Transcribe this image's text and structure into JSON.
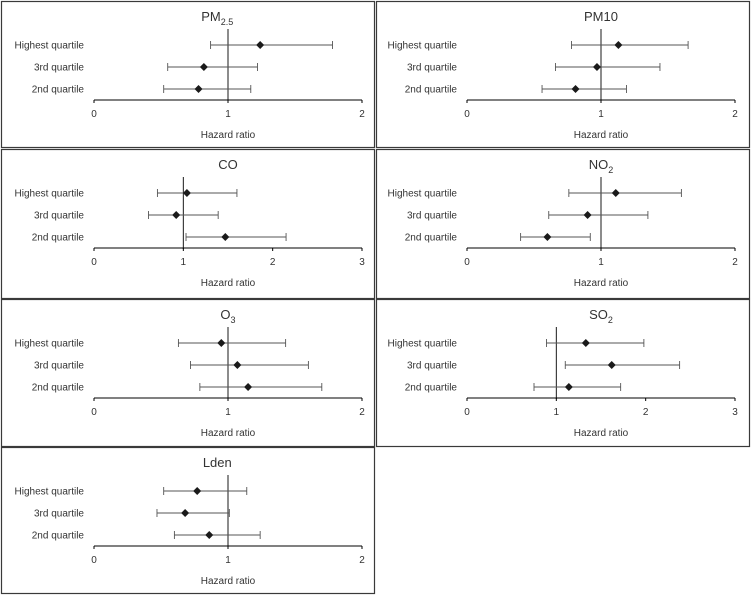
{
  "chart_data": [
    {
      "type": "forest",
      "title": "PM",
      "title_sub": "2.5",
      "categories": [
        "Highest quartile",
        "3rd quartile",
        "2nd quartile"
      ],
      "series": [
        {
          "name": "Hazard ratio",
          "estimate": [
            1.24,
            0.82,
            0.78
          ],
          "lower": [
            0.87,
            0.55,
            0.52
          ],
          "upper": [
            1.78,
            1.22,
            1.17
          ]
        }
      ],
      "ref_line": 1,
      "xlim": [
        0,
        2
      ],
      "xticks": [
        "0",
        "1",
        "2"
      ],
      "xlabel": "Hazard ratio",
      "axis_color": "#000000",
      "marker_color": "#1a1a1a"
    },
    {
      "type": "forest",
      "title": "PM10",
      "title_sub": "",
      "categories": [
        "Highest quartile",
        "3rd quartile",
        "2nd quartile"
      ],
      "series": [
        {
          "name": "Hazard ratio",
          "estimate": [
            1.13,
            0.97,
            0.81
          ],
          "lower": [
            0.78,
            0.66,
            0.56
          ],
          "upper": [
            1.65,
            1.44,
            1.19
          ]
        }
      ],
      "ref_line": 1,
      "xlim": [
        0,
        2
      ],
      "xticks": [
        "0",
        "1",
        "2"
      ],
      "xlabel": "Hazard ratio",
      "axis_color": "#000000",
      "marker_color": "#1a1a1a"
    },
    {
      "type": "forest",
      "title": "CO",
      "title_sub": "",
      "categories": [
        "Highest quartile",
        "3rd quartile",
        "2nd quartile"
      ],
      "series": [
        {
          "name": "Hazard ratio",
          "estimate": [
            1.04,
            0.92,
            1.47
          ],
          "lower": [
            0.71,
            0.61,
            1.03
          ],
          "upper": [
            1.6,
            1.39,
            2.15
          ]
        }
      ],
      "ref_line": 1,
      "xlim": [
        0,
        3
      ],
      "xticks": [
        "0",
        "1",
        "2",
        "3"
      ],
      "xlabel": "Hazard ratio",
      "axis_color": "#000000",
      "marker_color": "#1a1a1a"
    },
    {
      "type": "forest",
      "title": "NO",
      "title_sub": "2",
      "categories": [
        "Highest quartile",
        "3rd quartile",
        "2nd quartile"
      ],
      "series": [
        {
          "name": "Hazard ratio",
          "estimate": [
            1.11,
            0.9,
            0.6
          ],
          "lower": [
            0.76,
            0.61,
            0.4
          ],
          "upper": [
            1.6,
            1.35,
            0.92
          ]
        }
      ],
      "ref_line": 1,
      "xlim": [
        0,
        2
      ],
      "xticks": [
        "0",
        "1",
        "2"
      ],
      "xlabel": "Hazard ratio",
      "axis_color": "#000000",
      "marker_color": "#1a1a1a"
    },
    {
      "type": "forest",
      "title": "O",
      "title_sub": "3",
      "categories": [
        "Highest quartile",
        "3rd quartile",
        "2nd quartile"
      ],
      "series": [
        {
          "name": "Hazard ratio",
          "estimate": [
            0.95,
            1.07,
            1.15
          ],
          "lower": [
            0.63,
            0.72,
            0.79
          ],
          "upper": [
            1.43,
            1.6,
            1.7
          ]
        }
      ],
      "ref_line": 1,
      "xlim": [
        0,
        2
      ],
      "xticks": [
        "0",
        "1",
        "2"
      ],
      "xlabel": "Hazard ratio",
      "axis_color": "#000000",
      "marker_color": "#1a1a1a"
    },
    {
      "type": "forest",
      "title": "SO",
      "title_sub": "2",
      "categories": [
        "Highest quartile",
        "3rd quartile",
        "2nd quartile"
      ],
      "series": [
        {
          "name": "Hazard ratio",
          "estimate": [
            1.33,
            1.62,
            1.14
          ],
          "lower": [
            0.89,
            1.1,
            0.75
          ],
          "upper": [
            1.98,
            2.38,
            1.72
          ]
        }
      ],
      "ref_line": 1,
      "xlim": [
        0,
        3
      ],
      "xticks": [
        "0",
        "1",
        "2",
        "3"
      ],
      "xlabel": "Hazard ratio",
      "axis_color": "#000000",
      "marker_color": "#1a1a1a"
    },
    {
      "type": "forest",
      "title": "Lden",
      "title_sub": "",
      "categories": [
        "Highest quartile",
        "3rd quartile",
        "2nd quartile"
      ],
      "series": [
        {
          "name": "Hazard ratio",
          "estimate": [
            0.77,
            0.68,
            0.86
          ],
          "lower": [
            0.52,
            0.47,
            0.6
          ],
          "upper": [
            1.14,
            1.01,
            1.24
          ]
        }
      ],
      "ref_line": 1,
      "xlim": [
        0,
        2
      ],
      "xticks": [
        "0",
        "1",
        "2"
      ],
      "xlabel": "Hazard ratio",
      "axis_color": "#000000",
      "marker_color": "#1a1a1a"
    }
  ]
}
